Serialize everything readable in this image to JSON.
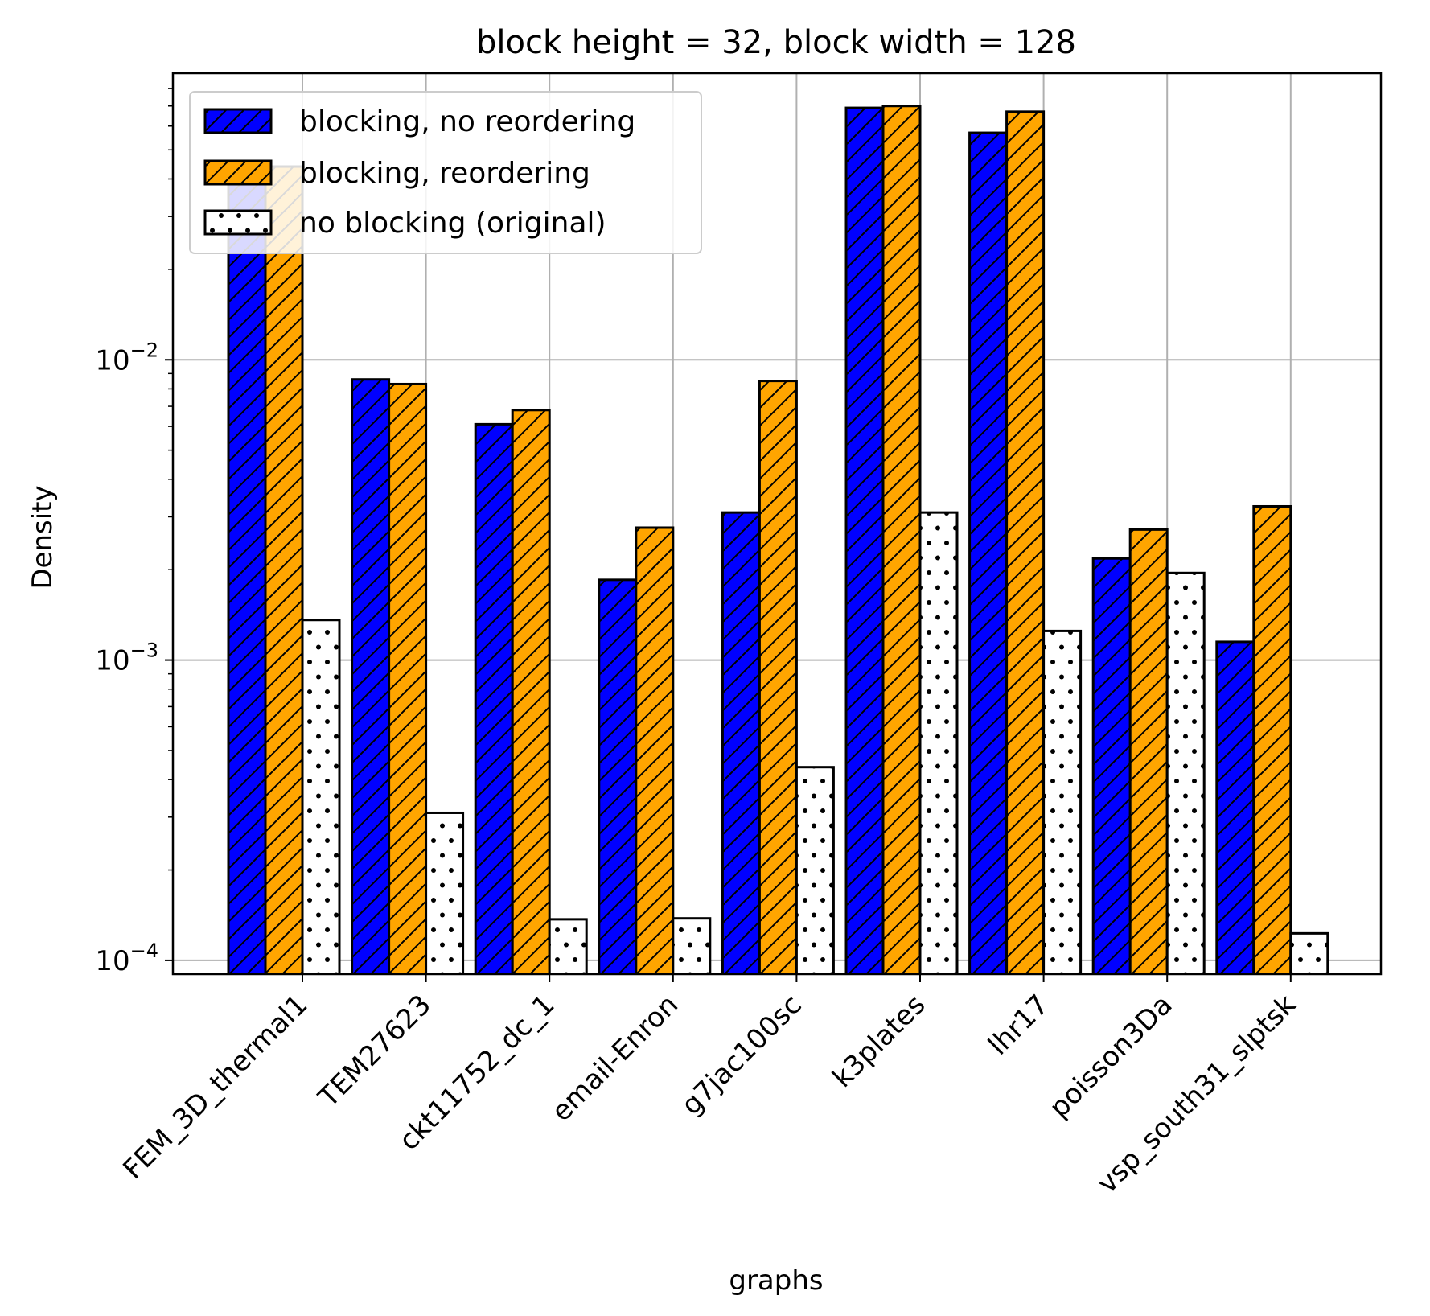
{
  "chart_data": {
    "type": "bar",
    "title": "block height = 32, block width = 128",
    "xlabel": "graphs",
    "ylabel": "Density",
    "yscale": "log",
    "ylim": [
      9e-05,
      0.09
    ],
    "yticks": [
      {
        "value": 0.0001,
        "base": "10",
        "exp": "−4"
      },
      {
        "value": 0.001,
        "base": "10",
        "exp": "−3"
      },
      {
        "value": 0.01,
        "base": "10",
        "exp": "−2"
      }
    ],
    "grid": true,
    "legend_position": "top-left",
    "categories": [
      "FEM_3D_thermal1",
      "TEM27623",
      "ckt11752_dc_1",
      "email-Enron",
      "g7jac100sc",
      "k3plates",
      "lhr17",
      "poisson3Da",
      "vsp_south31_slptsk"
    ],
    "series": [
      {
        "name": "blocking, no reordering",
        "color": "#0000ff",
        "pattern": "hatch",
        "values": [
          0.039,
          0.0086,
          0.0061,
          0.00185,
          0.0031,
          0.069,
          0.057,
          0.00218,
          0.00115
        ]
      },
      {
        "name": "blocking, reordering",
        "color": "#ffa500",
        "pattern": "hatch",
        "values": [
          0.044,
          0.0083,
          0.0068,
          0.00276,
          0.0085,
          0.07,
          0.067,
          0.00272,
          0.00325
        ]
      },
      {
        "name": "no blocking (original)",
        "color": "#ffffff",
        "pattern": "dots",
        "values": [
          0.00136,
          0.00031,
          0.000137,
          0.000138,
          0.00044,
          0.0031,
          0.00125,
          0.00195,
          0.000123
        ]
      }
    ]
  }
}
